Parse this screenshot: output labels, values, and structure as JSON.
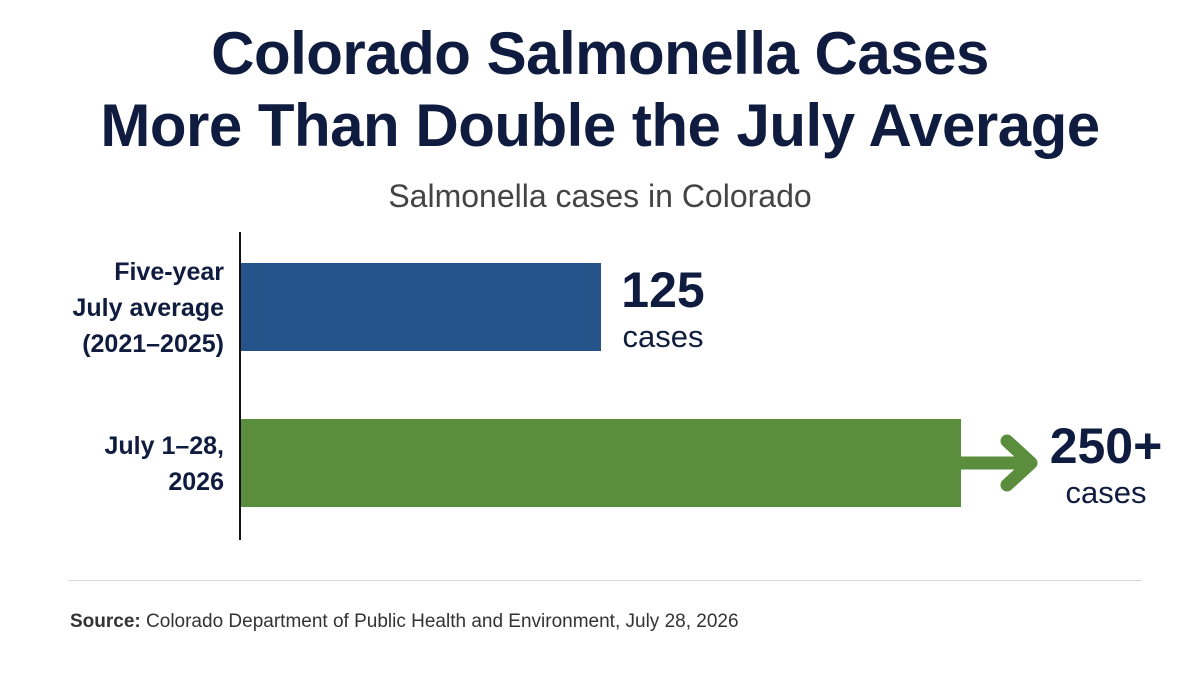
{
  "title_lines": [
    "Colorado Salmonella Cases",
    "More Than Double the July Average"
  ],
  "subtitle": "Salmonella cases in Colorado",
  "source": {
    "label": "Source:",
    "text": "Colorado Department of Public Health and Environment, July 28, 2026"
  },
  "colors": {
    "bar_1": "#26538a",
    "bar_2": "#5a8d3c",
    "text": "#0f1c3f"
  },
  "chart_data": {
    "type": "bar",
    "orientation": "horizontal",
    "title": "Colorado Salmonella Cases More Than Double the July Average",
    "subtitle": "Salmonella cases in Colorado",
    "categories": [
      [
        "Five-year",
        "July average",
        "(2021–2025)"
      ],
      [
        "July 1–28,",
        "2026"
      ]
    ],
    "values": [
      125,
      250
    ],
    "value_labels": [
      {
        "value": "125",
        "unit": "cases"
      },
      {
        "value": "250+",
        "unit": "cases"
      }
    ],
    "bar_colors": [
      "#26538a",
      "#5a8d3c"
    ],
    "annotations": [
      "arrow indicating 250+ continues to rise"
    ],
    "xlim": [
      0,
      250
    ],
    "grid": false,
    "legend": "none"
  }
}
